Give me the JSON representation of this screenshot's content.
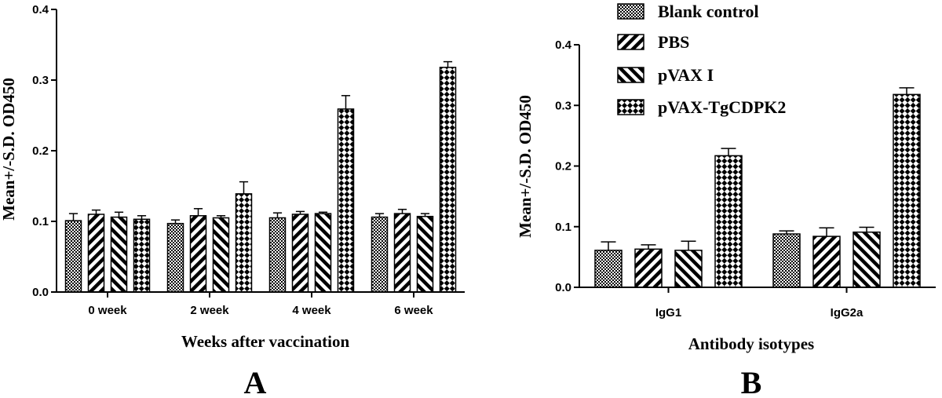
{
  "chart_data": [
    {
      "type": "bar",
      "panel_label": "A",
      "title": "",
      "xlabel": "Weeks  after vaccination",
      "ylabel": "Mean+/-S.D. OD450",
      "ylim": [
        0,
        0.4
      ],
      "yticks": [
        "0.0",
        "0.1",
        "0.2",
        "0.3",
        "0.4"
      ],
      "categories": [
        "0 week",
        "2 week",
        "4 week",
        "6 week"
      ],
      "series": [
        {
          "name": "Blank control",
          "values": [
            0.101,
            0.097,
            0.105,
            0.106
          ],
          "errors": [
            0.01,
            0.005,
            0.007,
            0.005
          ]
        },
        {
          "name": "PBS",
          "values": [
            0.11,
            0.108,
            0.11,
            0.111
          ],
          "errors": [
            0.006,
            0.01,
            0.004,
            0.006
          ]
        },
        {
          "name": "pVAX I",
          "values": [
            0.106,
            0.105,
            0.111,
            0.107
          ],
          "errors": [
            0.007,
            0.003,
            0.002,
            0.004
          ]
        },
        {
          "name": "pVAX-TgCDPK2",
          "values": [
            0.103,
            0.139,
            0.259,
            0.318
          ],
          "errors": [
            0.005,
            0.017,
            0.019,
            0.008
          ]
        }
      ]
    },
    {
      "type": "bar",
      "panel_label": "B",
      "title": "",
      "xlabel": "Antibody isotypes",
      "ylabel": "Mean+/-S.D. OD450",
      "ylim": [
        0,
        0.4
      ],
      "yticks": [
        "0.0",
        "0.1",
        "0.2",
        "0.3",
        "0.4"
      ],
      "categories": [
        "IgG1",
        "IgG2a"
      ],
      "series": [
        {
          "name": "Blank control",
          "values": [
            0.061,
            0.088
          ],
          "errors": [
            0.014,
            0.005
          ]
        },
        {
          "name": "PBS",
          "values": [
            0.063,
            0.084
          ],
          "errors": [
            0.007,
            0.014
          ]
        },
        {
          "name": "pVAX I",
          "values": [
            0.061,
            0.091
          ],
          "errors": [
            0.015,
            0.008
          ]
        },
        {
          "name": "pVAX-TgCDPK2",
          "values": [
            0.217,
            0.318
          ],
          "errors": [
            0.012,
            0.011
          ]
        }
      ],
      "legend": {
        "placement": "top",
        "items": [
          "Blank control",
          "PBS",
          "pVAX I",
          "pVAX-TgCDPK2"
        ]
      }
    }
  ]
}
